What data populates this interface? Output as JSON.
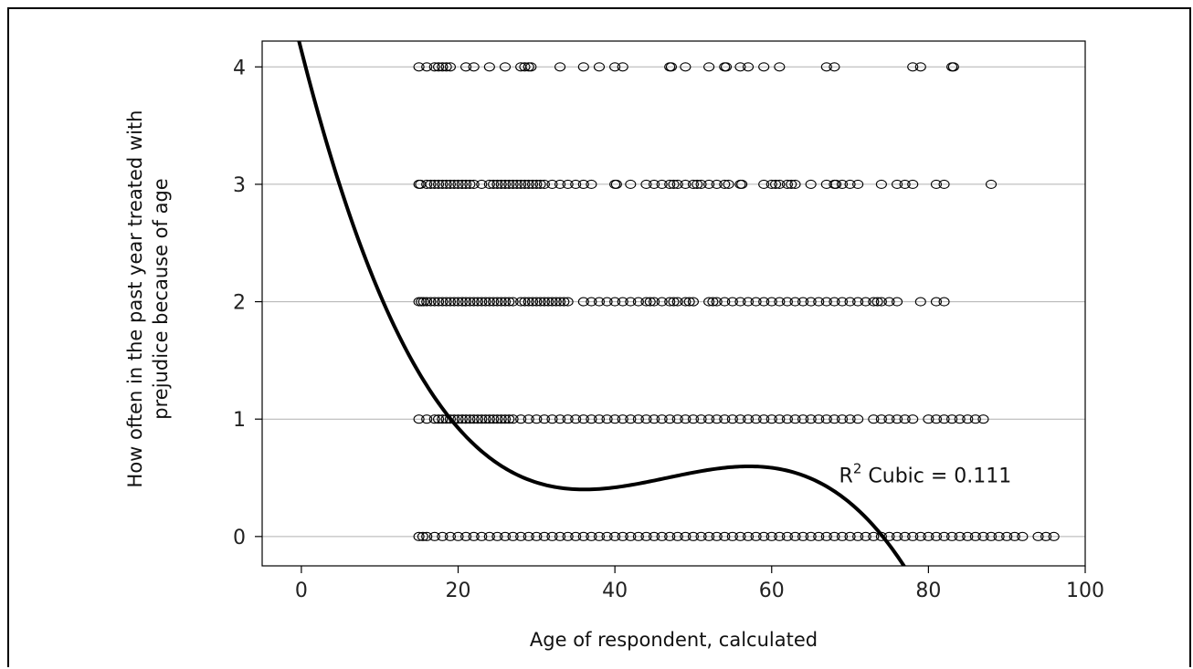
{
  "chart_data": {
    "type": "scatter",
    "xlabel": "Age of respondent, calculated",
    "ylabel_lines": [
      "How often in the past year treated with",
      "prejudice because of age"
    ],
    "xlim": [
      -5,
      100
    ],
    "ylim": [
      -0.25,
      4.22
    ],
    "x_ticks": [
      0,
      20,
      40,
      60,
      80,
      100
    ],
    "y_ticks": [
      0,
      1,
      2,
      3,
      4
    ],
    "grid": "horizontal gridlines at y ticks",
    "marker": "hollow ellipse",
    "fit": {
      "label": "R",
      "superscript": "2",
      "label_rest": " Cubic = 0.111",
      "model": "cubic",
      "r_squared": 0.111,
      "coefficients": [
        4.14,
        -0.2624,
        0.00593,
        -4.24e-05
      ],
      "x_range": [
        -1,
        95
      ]
    },
    "series": [
      {
        "y": 4,
        "x": [
          15,
          16,
          17,
          17.5,
          18,
          18.5,
          19,
          21,
          22,
          24,
          26,
          28,
          28.5,
          29,
          29.3,
          33,
          36,
          38,
          40,
          41,
          47,
          47.2,
          49,
          52,
          54,
          54.2,
          56,
          57,
          59,
          61,
          67,
          68,
          78,
          79,
          83,
          83.2
        ]
      },
      {
        "y": 3,
        "x": [
          15,
          15.2,
          16,
          16.5,
          17,
          17.5,
          18,
          18.5,
          19,
          19.5,
          20,
          20.5,
          21,
          21.5,
          22,
          23,
          24,
          24.5,
          25,
          25.5,
          26,
          26.5,
          27,
          27.5,
          28,
          28.5,
          29,
          29.5,
          30,
          30.5,
          31,
          32,
          33,
          34,
          35,
          36,
          37,
          40,
          40.2,
          42,
          44,
          45,
          46,
          47,
          47.5,
          48,
          49,
          50,
          50.5,
          51,
          52,
          53,
          54,
          54.5,
          56,
          56.2,
          59,
          60,
          60.5,
          61,
          62,
          62.5,
          63,
          65,
          67,
          68,
          68.2,
          69,
          70,
          71,
          74,
          76,
          77,
          78,
          81,
          82,
          88
        ]
      },
      {
        "y": 2,
        "x": [
          15,
          15.3,
          15.6,
          16,
          16.5,
          17,
          17.5,
          18,
          18.5,
          19,
          19.5,
          20,
          20.5,
          21,
          21.5,
          22,
          22.5,
          23,
          23.5,
          24,
          24.5,
          25,
          25.5,
          26,
          26.5,
          27,
          28,
          28.5,
          29,
          29.5,
          30,
          30.5,
          31,
          31.5,
          32,
          32.5,
          33,
          33.5,
          34,
          36,
          37,
          38,
          39,
          40,
          41,
          42,
          43,
          44,
          44.5,
          45,
          46,
          47,
          47.5,
          48,
          49,
          49.5,
          50,
          52,
          52.5,
          53,
          54,
          55,
          56,
          57,
          58,
          59,
          60,
          61,
          62,
          63,
          64,
          65,
          66,
          67,
          68,
          69,
          70,
          71,
          72,
          73,
          73.5,
          74,
          75,
          76,
          79,
          81,
          82
        ]
      },
      {
        "y": 1,
        "x": [
          15,
          16,
          17,
          17.5,
          18,
          18.5,
          19,
          19.5,
          20,
          20.5,
          21,
          21.5,
          22,
          22.5,
          23,
          23.5,
          24,
          24.5,
          25,
          25.5,
          26,
          26.5,
          27,
          28,
          29,
          30,
          31,
          32,
          33,
          34,
          35,
          36,
          37,
          38,
          39,
          40,
          41,
          42,
          43,
          44,
          45,
          46,
          47,
          48,
          49,
          50,
          51,
          52,
          53,
          54,
          55,
          56,
          57,
          58,
          59,
          60,
          61,
          62,
          63,
          64,
          65,
          66,
          67,
          68,
          69,
          70,
          71,
          73,
          74,
          75,
          76,
          77,
          78,
          80,
          81,
          82,
          83,
          84,
          85,
          86,
          87
        ]
      },
      {
        "y": 0,
        "x": [
          15,
          15.5,
          16,
          17,
          18,
          19,
          20,
          21,
          22,
          23,
          24,
          25,
          26,
          27,
          28,
          29,
          30,
          31,
          32,
          33,
          34,
          35,
          36,
          37,
          38,
          39,
          40,
          41,
          42,
          43,
          44,
          45,
          46,
          47,
          48,
          49,
          50,
          51,
          52,
          53,
          54,
          55,
          56,
          57,
          58,
          59,
          60,
          61,
          62,
          63,
          64,
          65,
          66,
          67,
          68,
          69,
          70,
          71,
          72,
          73,
          74,
          75,
          76,
          77,
          78,
          79,
          80,
          81,
          82,
          83,
          84,
          85,
          86,
          87,
          88,
          89,
          90,
          91,
          92,
          94,
          95,
          96
        ]
      }
    ]
  }
}
